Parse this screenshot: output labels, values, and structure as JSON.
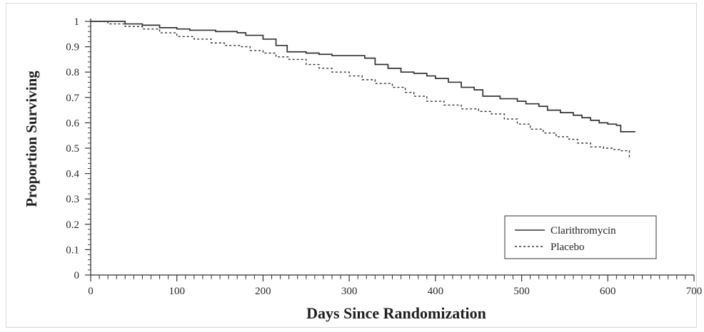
{
  "chart_data": {
    "type": "line",
    "title": "",
    "xlabel": "Days Since Randomization",
    "ylabel": "Proportion Surviving",
    "xlim": [
      0,
      700
    ],
    "ylim": [
      0,
      1
    ],
    "x_ticks": [
      0,
      100,
      200,
      300,
      400,
      500,
      600,
      700
    ],
    "x_tick_labels": [
      "0",
      "100",
      "200",
      "300",
      "400",
      "500",
      "600",
      "700"
    ],
    "y_ticks": [
      0,
      0.1,
      0.2,
      0.3,
      0.4,
      0.5,
      0.6,
      0.7,
      0.8,
      0.9,
      1
    ],
    "y_tick_labels": [
      "0",
      "0.1",
      "0.2",
      "0.3",
      "0.4",
      "0.5",
      "0.6",
      "0.7",
      "0.8",
      "0.9",
      "1"
    ],
    "grid": false,
    "legend_position": "bottom-right",
    "series": [
      {
        "name": "Clarithromycin",
        "style": "solid",
        "color": "#333333",
        "x": [
          0,
          40,
          60,
          80,
          100,
          115,
          145,
          170,
          180,
          200,
          215,
          228,
          250,
          265,
          280,
          300,
          318,
          330,
          345,
          360,
          375,
          390,
          400,
          415,
          430,
          445,
          455,
          475,
          495,
          505,
          520,
          530,
          545,
          560,
          570,
          580,
          590,
          600,
          610,
          615,
          632
        ],
        "y": [
          1.0,
          0.99,
          0.985,
          0.975,
          0.97,
          0.965,
          0.96,
          0.955,
          0.945,
          0.93,
          0.905,
          0.88,
          0.875,
          0.87,
          0.865,
          0.865,
          0.855,
          0.83,
          0.815,
          0.8,
          0.795,
          0.785,
          0.775,
          0.76,
          0.74,
          0.73,
          0.705,
          0.695,
          0.685,
          0.675,
          0.665,
          0.65,
          0.64,
          0.63,
          0.62,
          0.61,
          0.6,
          0.595,
          0.59,
          0.565,
          0.565
        ]
      },
      {
        "name": "Placebo",
        "style": "dashed",
        "color": "#333333",
        "x": [
          0,
          20,
          40,
          60,
          80,
          100,
          120,
          140,
          155,
          175,
          185,
          200,
          215,
          230,
          250,
          265,
          280,
          300,
          315,
          330,
          350,
          365,
          375,
          390,
          410,
          430,
          450,
          465,
          480,
          495,
          510,
          525,
          540,
          555,
          565,
          580,
          595,
          605,
          615,
          625
        ],
        "y": [
          1.0,
          0.99,
          0.98,
          0.97,
          0.955,
          0.94,
          0.93,
          0.915,
          0.905,
          0.9,
          0.885,
          0.875,
          0.86,
          0.85,
          0.83,
          0.815,
          0.8,
          0.785,
          0.77,
          0.755,
          0.74,
          0.72,
          0.705,
          0.685,
          0.67,
          0.655,
          0.645,
          0.635,
          0.615,
          0.595,
          0.575,
          0.56,
          0.545,
          0.535,
          0.52,
          0.505,
          0.5,
          0.495,
          0.49,
          0.465
        ]
      }
    ]
  }
}
